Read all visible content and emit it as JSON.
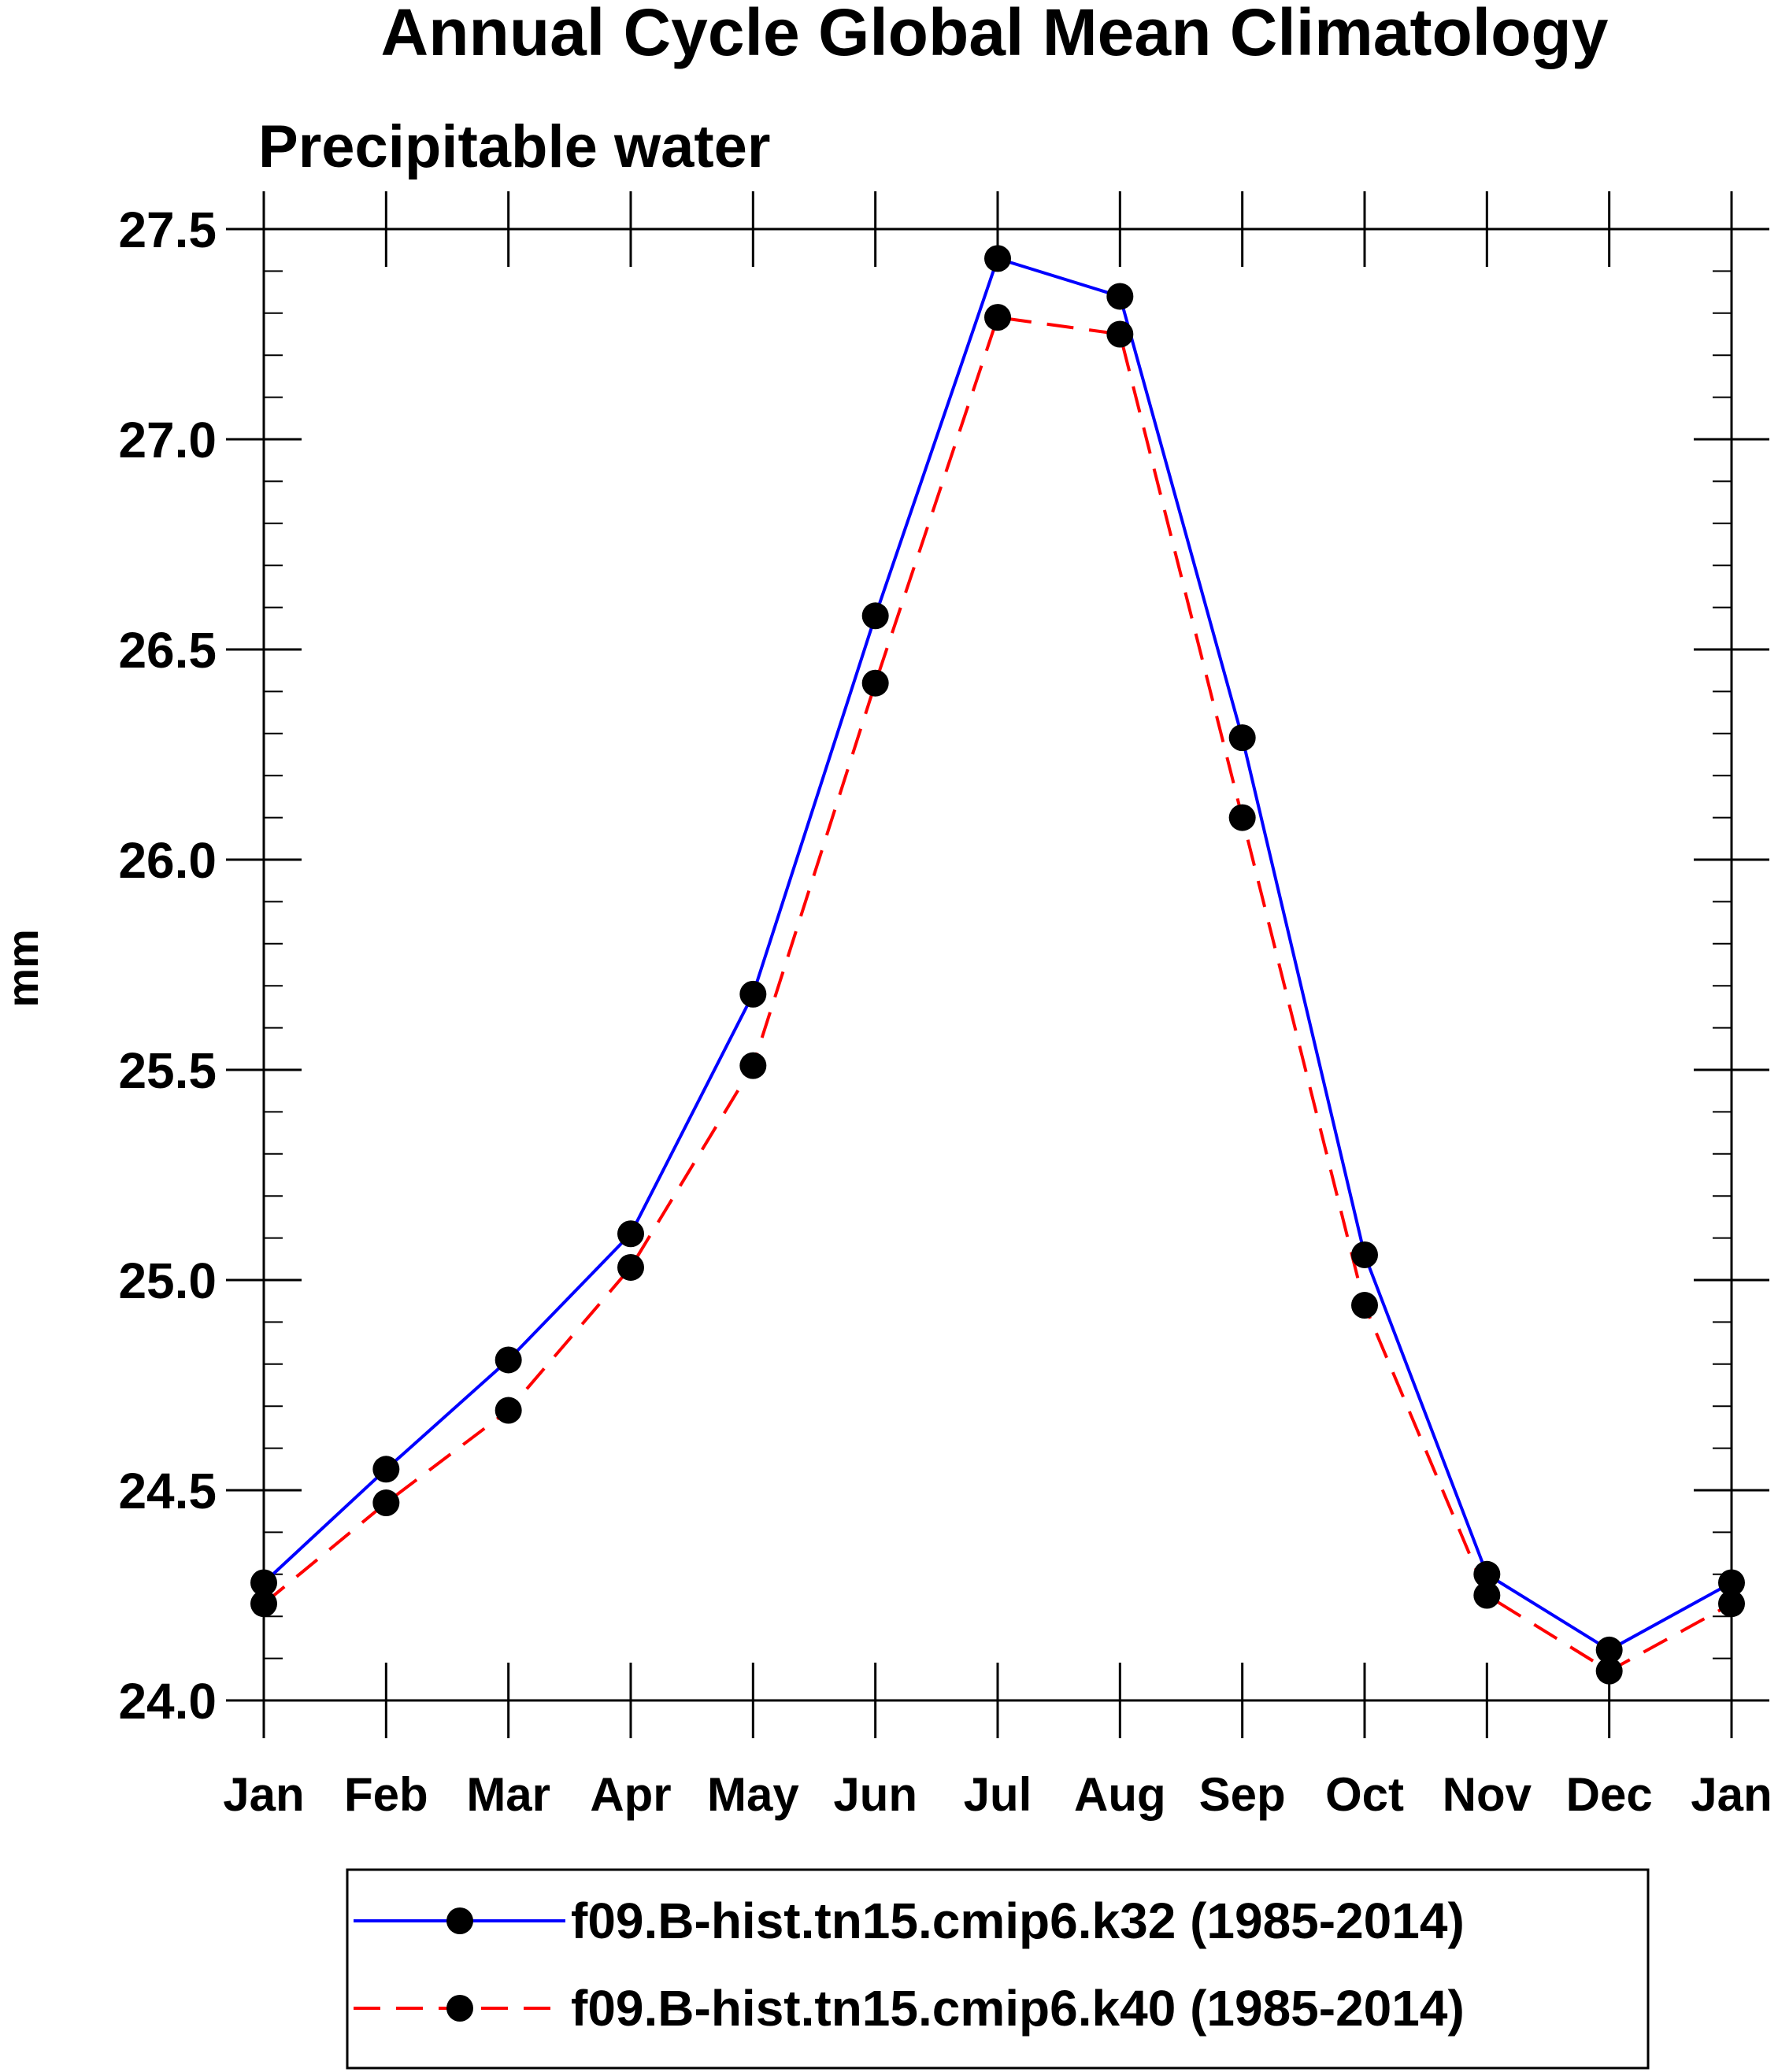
{
  "chart_data": {
    "type": "line",
    "title": "Annual Cycle Global Mean Climatology",
    "subtitle": "Precipitable water",
    "ylabel": "mm",
    "xlabel": "",
    "categories": [
      "Jan",
      "Feb",
      "Mar",
      "Apr",
      "May",
      "Jun",
      "Jul",
      "Aug",
      "Sep",
      "Oct",
      "Nov",
      "Dec",
      "Jan"
    ],
    "ylim": [
      24.0,
      27.5
    ],
    "yticks": [
      "24.0",
      "24.5",
      "25.0",
      "25.5",
      "26.0",
      "26.5",
      "27.0",
      "27.5"
    ],
    "grid": false,
    "legend_position": "bottom",
    "series": [
      {
        "name": "f09.B-hist.tn15.cmip6.k32 (1985-2014)",
        "color": "#0000ff",
        "line_style": "solid",
        "marker": "filled-circle",
        "values": [
          24.28,
          24.55,
          24.81,
          25.11,
          25.68,
          26.58,
          27.43,
          27.34,
          26.29,
          25.06,
          24.3,
          24.12,
          24.28
        ]
      },
      {
        "name": "f09.B-hist.tn15.cmip6.k40 (1985-2014)",
        "color": "#ff0000",
        "line_style": "dashed",
        "marker": "filled-circle",
        "values": [
          24.23,
          24.47,
          24.69,
          25.03,
          25.51,
          26.42,
          27.29,
          27.25,
          26.1,
          24.94,
          24.25,
          24.07,
          24.23
        ]
      }
    ]
  }
}
